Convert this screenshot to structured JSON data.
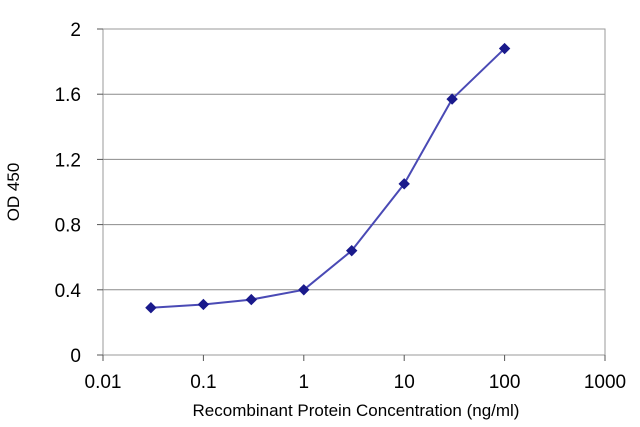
{
  "chart_data": {
    "type": "line",
    "title": "",
    "xlabel": "Recombinant Protein Concentration (ng/ml)",
    "ylabel": "OD 450",
    "x_scale": "log",
    "xlim": [
      0.01,
      1000
    ],
    "ylim": [
      0,
      2
    ],
    "x_ticks": [
      "0.01",
      "0.1",
      "1",
      "10",
      "100",
      "1000"
    ],
    "y_ticks": [
      "0",
      "0.4",
      "0.8",
      "1.2",
      "1.6",
      "2"
    ],
    "grid": "horizontal",
    "legend": "none",
    "line_color": "#4a4ab5",
    "marker_color": "#1a1a8c",
    "series": [
      {
        "x": [
          0.03,
          0.1,
          0.3,
          1,
          3,
          10,
          30,
          100
        ],
        "values": [
          0.29,
          0.31,
          0.34,
          0.4,
          0.64,
          1.05,
          1.57,
          1.88
        ]
      }
    ]
  }
}
